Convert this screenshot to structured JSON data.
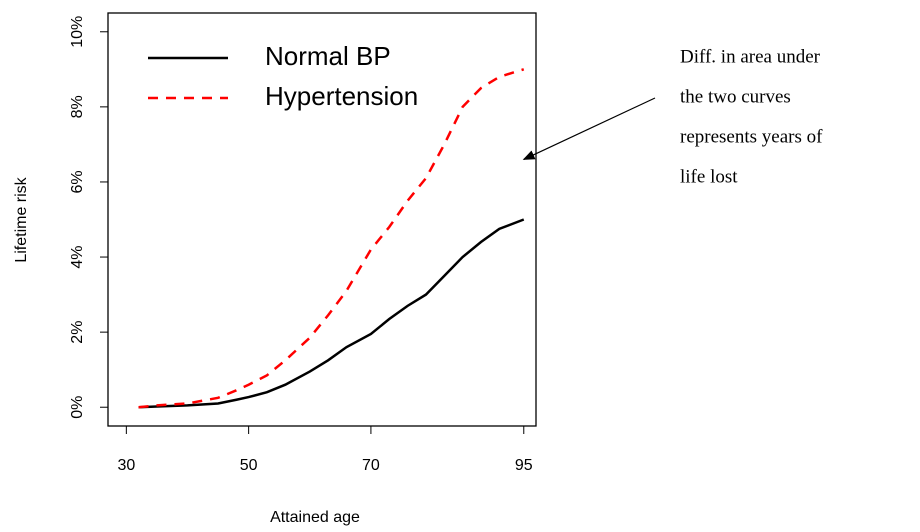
{
  "chart_data": {
    "type": "line",
    "x_label": "Attained age",
    "y_label": "Lifetime risk",
    "xlim": [
      27,
      97
    ],
    "ylim": [
      -0.5,
      10.5
    ],
    "xticks": [
      30,
      50,
      70,
      95
    ],
    "yticks": [
      {
        "value": 0,
        "label": "0%"
      },
      {
        "value": 2,
        "label": "2%"
      },
      {
        "value": 4,
        "label": "4%"
      },
      {
        "value": 6,
        "label": "6%"
      },
      {
        "value": 8,
        "label": "8%"
      },
      {
        "value": 10,
        "label": "10%"
      }
    ],
    "legend": "upper left",
    "x": [
      32,
      35,
      40,
      45,
      48,
      50,
      53,
      56,
      60,
      63,
      66,
      70,
      73,
      76,
      79,
      82,
      85,
      88,
      91,
      95
    ],
    "series": [
      {
        "name": "Normal BP",
        "color": "#000000",
        "style": "solid",
        "values": [
          0,
          0.02,
          0.05,
          0.1,
          0.2,
          0.27,
          0.4,
          0.6,
          0.95,
          1.25,
          1.6,
          1.95,
          2.35,
          2.7,
          3.0,
          3.5,
          4.0,
          4.4,
          4.75,
          5.0
        ]
      },
      {
        "name": "Hypertension",
        "color": "#ff0000",
        "style": "dashed",
        "values": [
          0,
          0.05,
          0.1,
          0.25,
          0.45,
          0.6,
          0.85,
          1.25,
          1.85,
          2.45,
          3.1,
          4.2,
          4.8,
          5.5,
          6.1,
          7.0,
          8.0,
          8.5,
          8.8,
          9.0
        ]
      }
    ],
    "annotation": {
      "lines": [
        "Diff. in area under",
        "the two curves",
        "represents years of",
        "life lost"
      ],
      "arrow_to": [
        95,
        6.6
      ]
    }
  }
}
